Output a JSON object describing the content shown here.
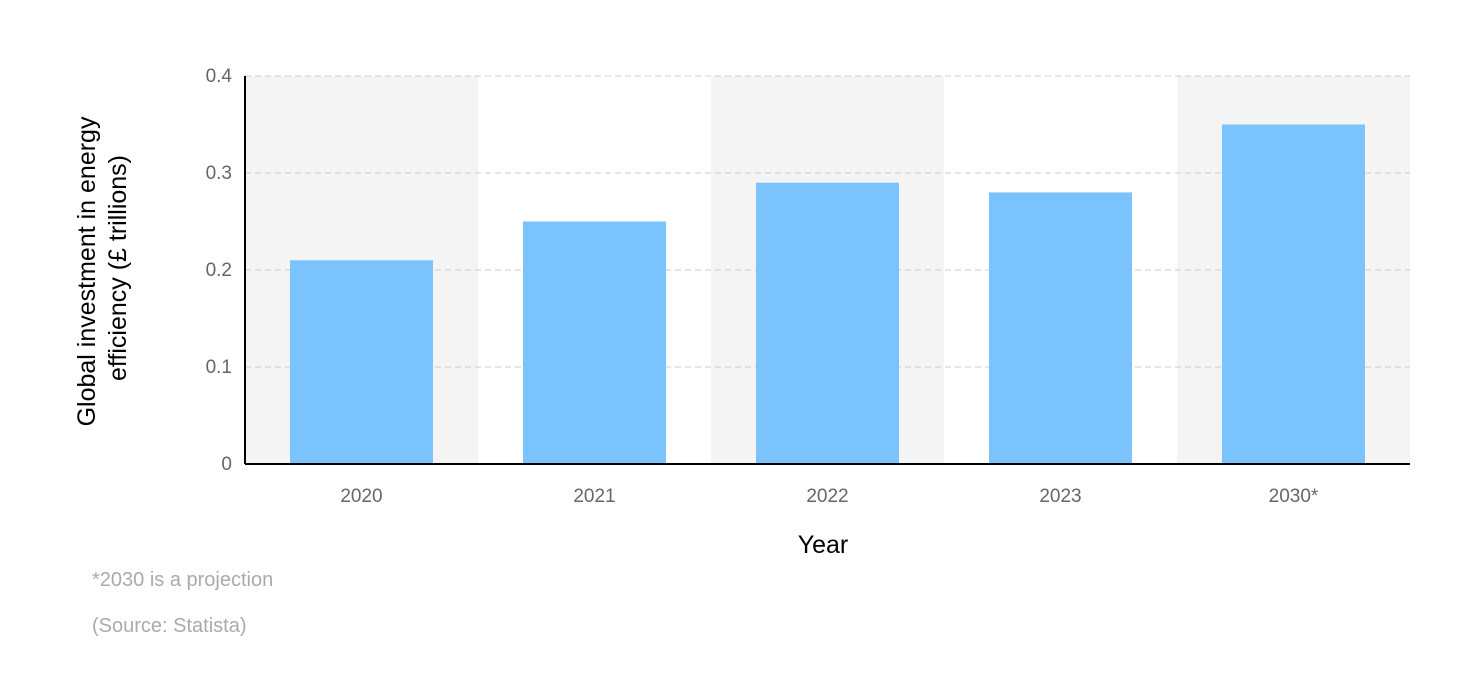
{
  "chart_data": {
    "type": "bar",
    "categories": [
      "2020",
      "2021",
      "2022",
      "2023",
      "2030*"
    ],
    "values": [
      0.21,
      0.25,
      0.29,
      0.28,
      0.35
    ],
    "xlabel": "Year",
    "ylabel_lines": [
      "Global investment in energy",
      "efficiency (£ trillions)"
    ],
    "ylim": [
      0,
      0.4
    ],
    "yticks": [
      "0",
      "0.1",
      "0.2",
      "0.3",
      "0.4"
    ],
    "grid": true,
    "colors": {
      "bar": "#7ac3fd",
      "band": "#f4f4f4",
      "grid": "#cccccc",
      "axis": "#000000"
    }
  },
  "footnote": "*2030 is a projection",
  "source": "(Source: Statista)"
}
